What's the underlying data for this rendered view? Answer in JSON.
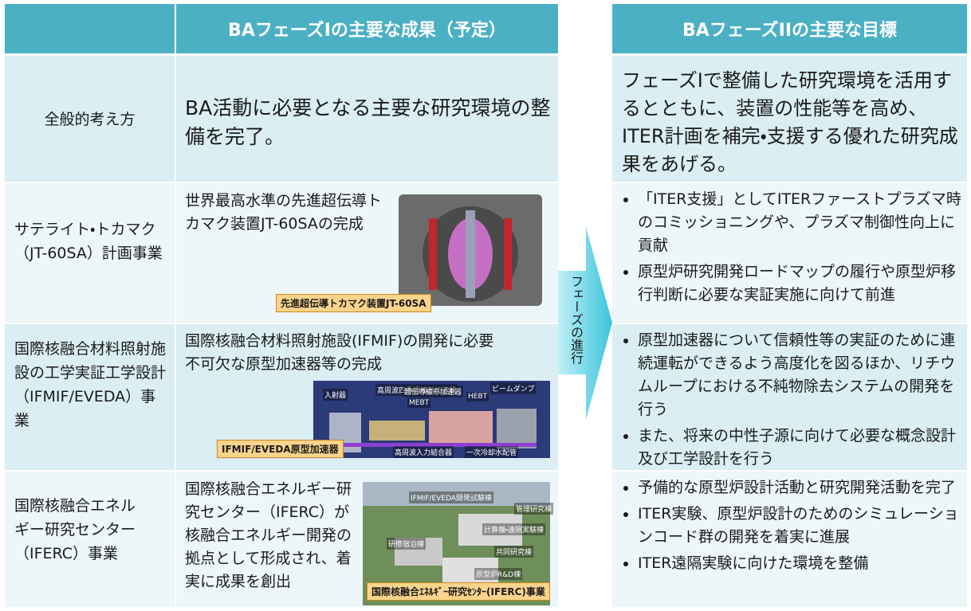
{
  "header": {
    "phase1": "BAフェーズIの主要な成果（予定）",
    "phase2": "BAフェーズIIの主要な目標"
  },
  "arrow": "フェーズの進行",
  "rows": [
    {
      "label": "全般的考え方",
      "phase1": "BA活動に必要となる主要な研究環境の整備を完了。",
      "phase2": "フェーズIで整備した研究環境を活用するとともに、装置の性能等を高め、ITER計画を補完・支援する優れた研究成果をあげる。"
    },
    {
      "label": "サテライト・トカマク（JT-60SA）計画事業",
      "phase1": "世界最高水準の先進超伝導トカマク装置JT-60SAの完成",
      "image": {
        "caption": "先進超伝導トカマク装置JT-60SA",
        "labels": []
      },
      "goals": [
        "「ITER支援」としてITERファーストプラズマ時のコミッショニングや、プラズマ制御性向上に貢献",
        "原型炉研究開発ロードマップの履行や原型炉移行判断に必要な実証実施に向けて前進"
      ]
    },
    {
      "label": "国際核融合材料照射施設の工学実証工学設計（IFMIF/EVEDA）事業",
      "phase1": "国際核融合材料照射施設(IFMIF)の開発に必要不可欠な原型加速器等の完成",
      "image": {
        "caption": "IFMIF/EVEDA原型加速器",
        "labels": [
          "入射器",
          "高周波四重極線形加速器",
          "超伝導線形加速器",
          "HEBT",
          "ビームダンプ",
          "MEBT",
          "高周波入力結合器",
          "一次冷却水配管"
        ]
      },
      "goals": [
        "原型加速器について信頼性等の実証のために連続運転ができるよう高度化を図るほか、リチウムループにおける不純物除去システムの開発を行う",
        "また、将来の中性子源に向けて必要な概念設計及び工学設計を行う"
      ]
    },
    {
      "label": "国際核融合エネルギー研究センター（IFERC）事業",
      "phase1": "国際核融合エネルギー研究センター（IFERC）が核融合エネルギー開発の拠点として形成され、着実に成果を創出",
      "image": {
        "caption": "国際核融合ｴﾈﾙｷﾞｰ研究ｾﾝﾀｰ(IFERC)事業",
        "labels": [
          "IFMIF/EVEDA開発試験棟",
          "管理研究棟",
          "計算機・遠隔実験棟",
          "研修宿泊棟",
          "共同研究棟",
          "原型炉R&D棟"
        ]
      },
      "goals": [
        "予備的な原型炉設計活動と研究開発活動を完了",
        "ITER実験、原型炉設計のためのシミュレーションコード群の開発を着実に進展",
        "ITER遠隔実験に向けた環境を整備"
      ]
    }
  ]
}
